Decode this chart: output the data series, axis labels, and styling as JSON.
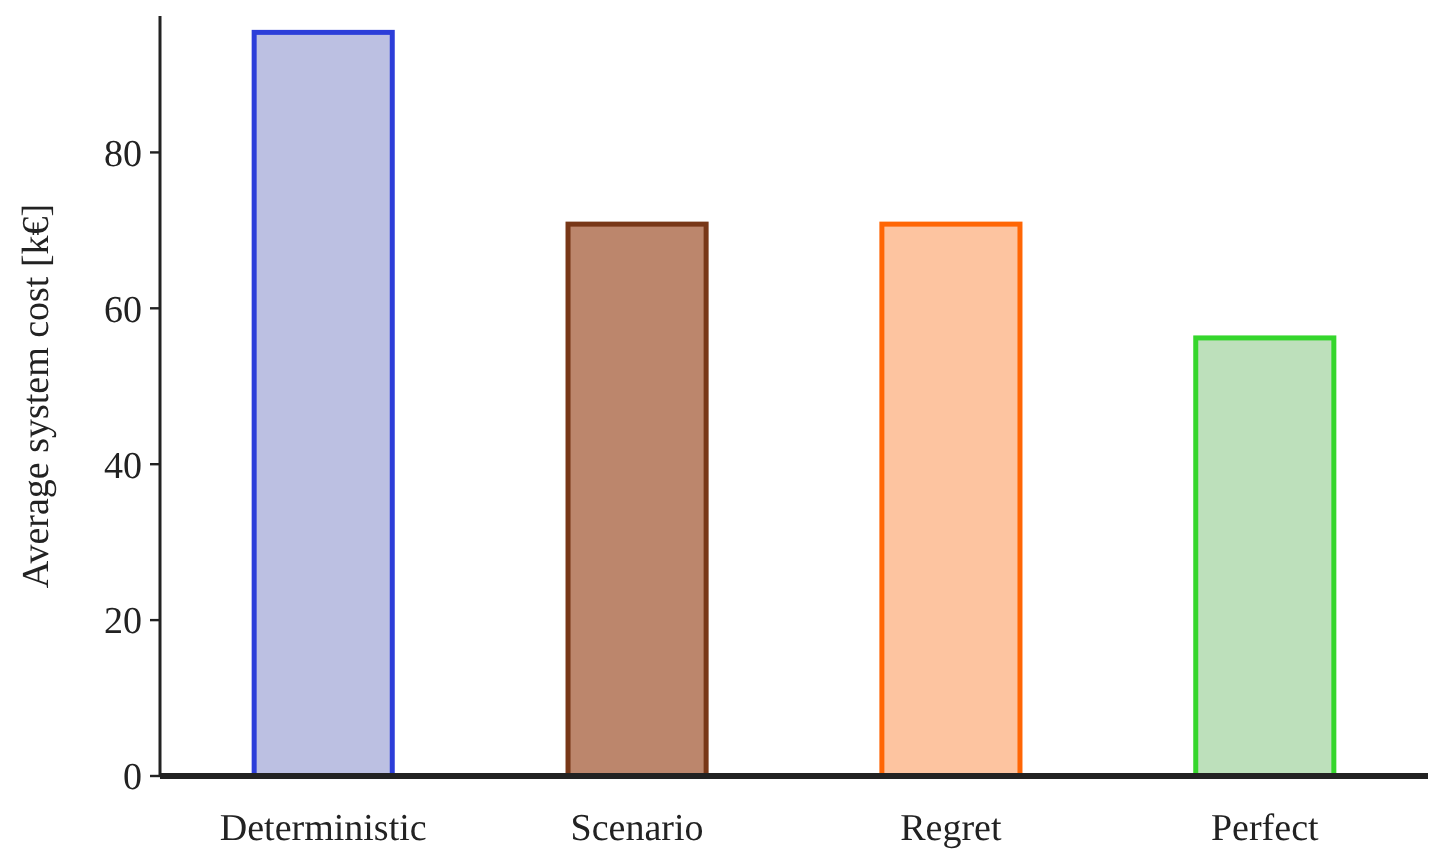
{
  "chart_data": {
    "type": "bar",
    "ylabel": "Average system cost [k€]",
    "categories": [
      "Deterministic",
      "Scenario",
      "Regret",
      "Perfect"
    ],
    "values": [
      95.4,
      70.8,
      70.8,
      56.2
    ],
    "colors": [
      "#bcc0e2",
      "#bc866c",
      "#fdc4a0",
      "#bde0bb"
    ],
    "ylim": [
      0,
      97.5
    ],
    "yticks": [
      0,
      20,
      40,
      60,
      80
    ],
    "grid": false
  }
}
